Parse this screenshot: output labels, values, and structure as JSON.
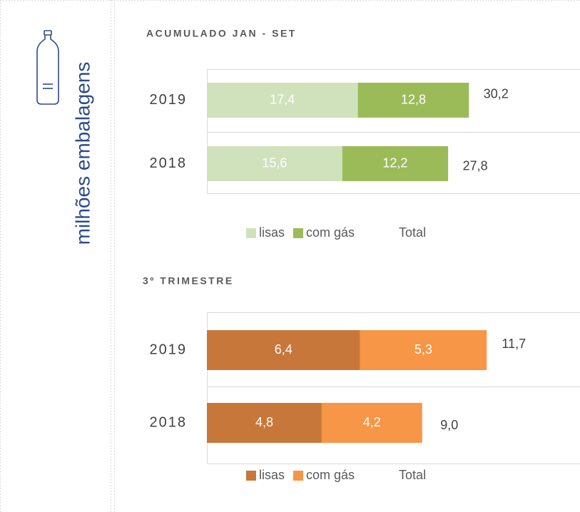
{
  "ylabel": "milhões embalagens",
  "chart_data": [
    {
      "type": "bar",
      "orientation": "horizontal",
      "stacked": true,
      "title": "ACUMULADO JAN - SET",
      "categories": [
        "2019",
        "2018"
      ],
      "series": [
        {
          "name": "lisas",
          "color": "#cfe2bc",
          "values": [
            17.4,
            15.6
          ],
          "value_labels": [
            "17,4",
            "15,6"
          ]
        },
        {
          "name": "com gás",
          "color": "#9bbb59",
          "values": [
            12.8,
            12.2
          ],
          "value_labels": [
            "12,8",
            "12,2"
          ]
        },
        {
          "name": "Total",
          "values": [
            30.2,
            27.8
          ],
          "value_labels": [
            "30,2",
            "27,8"
          ]
        }
      ],
      "xlim": [
        0,
        43
      ]
    },
    {
      "type": "bar",
      "orientation": "horizontal",
      "stacked": true,
      "title": "3º TRIMESTRE",
      "categories": [
        "2019",
        "2018"
      ],
      "series": [
        {
          "name": "lisas",
          "color": "#c8773a",
          "values": [
            6.4,
            4.8
          ],
          "value_labels": [
            "6,4",
            "4,8"
          ]
        },
        {
          "name": "com gás",
          "color": "#f79646",
          "values": [
            5.3,
            4.2
          ],
          "value_labels": [
            "5,3",
            "4,2"
          ]
        },
        {
          "name": "Total",
          "values": [
            11.7,
            9.0
          ],
          "value_labels": [
            "11,7",
            "9,0"
          ]
        }
      ],
      "xlim": [
        0,
        15.6
      ]
    }
  ]
}
